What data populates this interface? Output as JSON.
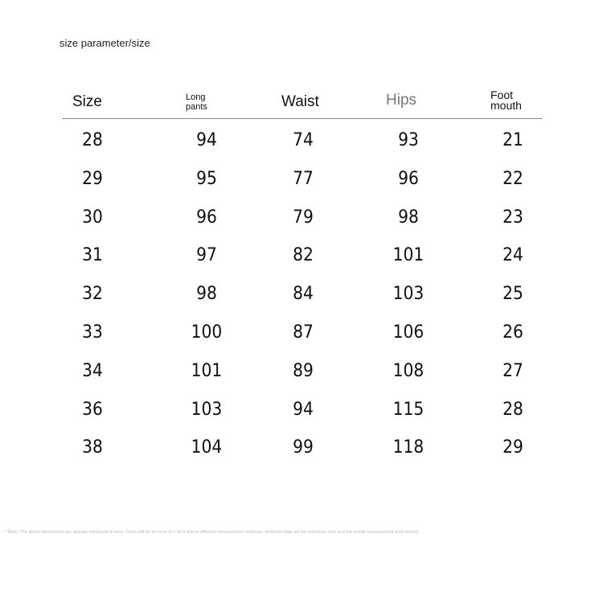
{
  "title": "size parameter/size",
  "headers": {
    "size": "Size",
    "long_pants_1": "Long",
    "long_pants_2": "pants",
    "waist": "Waist",
    "hips": "Hips",
    "foot_1": "Foot",
    "foot_2": "mouth"
  },
  "hips_header_color": "#777777",
  "rows": [
    [
      "28",
      "94",
      "74",
      "93",
      "21"
    ],
    [
      "29",
      "95",
      "77",
      "96",
      "22"
    ],
    [
      "30",
      "96",
      "79",
      "98",
      "23"
    ],
    [
      "31",
      "97",
      "82",
      "101",
      "24"
    ],
    [
      "32",
      "98",
      "84",
      "103",
      "25"
    ],
    [
      "33",
      "100",
      "87",
      "106",
      "26"
    ],
    [
      "34",
      "101",
      "89",
      "108",
      "27"
    ],
    [
      "36",
      "103",
      "94",
      "115",
      "28"
    ],
    [
      "38",
      "104",
      "99",
      "118",
      "29"
    ]
  ],
  "note": "* Note: The above dimensions are actually measured in kind. There will be an error of 1-3cm due to different measurement methods. Relevant data are for reference only, and the actual measurement shall prevail"
}
